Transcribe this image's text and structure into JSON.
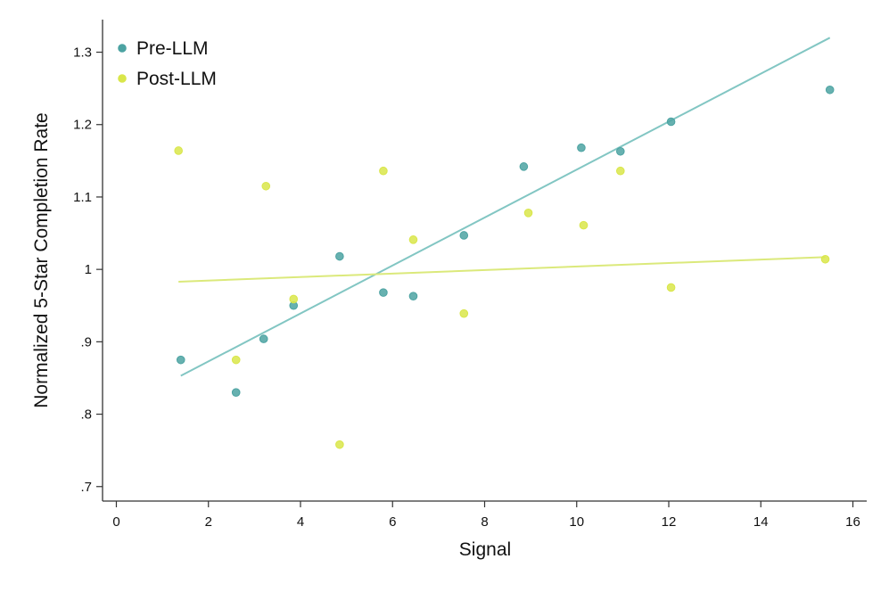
{
  "chart_data": {
    "type": "scatter",
    "xlabel": "Signal",
    "ylabel": "Normalized 5-Star Completion Rate",
    "xlim": [
      -0.3,
      16.3
    ],
    "ylim": [
      0.68,
      1.345
    ],
    "xticks": [
      0,
      2,
      4,
      6,
      8,
      10,
      12,
      14,
      16
    ],
    "xtick_labels": [
      "0",
      "2",
      "4",
      "6",
      "8",
      "10",
      "12",
      "14",
      "16"
    ],
    "yticks": [
      0.7,
      0.8,
      0.9,
      1.0,
      1.1,
      1.2,
      1.3
    ],
    "ytick_labels": [
      ".7",
      ".8",
      ".9",
      "1",
      "1.1",
      "1.2",
      "1.3"
    ],
    "grid": false,
    "legend_position": "top-left",
    "series": [
      {
        "name": "Pre-LLM",
        "color": "#4ca3a2",
        "line_color": "#82c6c3",
        "points": [
          {
            "x": 1.4,
            "y": 0.875
          },
          {
            "x": 2.6,
            "y": 0.83
          },
          {
            "x": 3.2,
            "y": 0.904
          },
          {
            "x": 3.85,
            "y": 0.95
          },
          {
            "x": 4.85,
            "y": 1.018
          },
          {
            "x": 5.8,
            "y": 0.968
          },
          {
            "x": 6.45,
            "y": 0.963
          },
          {
            "x": 7.55,
            "y": 1.047
          },
          {
            "x": 8.85,
            "y": 1.142
          },
          {
            "x": 10.1,
            "y": 1.168
          },
          {
            "x": 10.95,
            "y": 1.163
          },
          {
            "x": 12.05,
            "y": 1.204
          },
          {
            "x": 15.5,
            "y": 1.248
          }
        ],
        "fit": {
          "x": [
            1.4,
            15.5
          ],
          "y": [
            0.853,
            1.32
          ]
        }
      },
      {
        "name": "Post-LLM",
        "color": "#d9e64a",
        "line_color": "#dbe97b",
        "points": [
          {
            "x": 1.35,
            "y": 1.164
          },
          {
            "x": 2.6,
            "y": 0.875
          },
          {
            "x": 3.25,
            "y": 1.115
          },
          {
            "x": 3.85,
            "y": 0.959
          },
          {
            "x": 4.85,
            "y": 0.758
          },
          {
            "x": 5.8,
            "y": 1.136
          },
          {
            "x": 6.45,
            "y": 1.041
          },
          {
            "x": 7.55,
            "y": 0.939
          },
          {
            "x": 8.95,
            "y": 1.078
          },
          {
            "x": 10.15,
            "y": 1.061
          },
          {
            "x": 10.95,
            "y": 1.136
          },
          {
            "x": 12.05,
            "y": 0.975
          },
          {
            "x": 15.4,
            "y": 1.014
          }
        ],
        "fit": {
          "x": [
            1.35,
            15.4
          ],
          "y": [
            0.983,
            1.017
          ]
        }
      }
    ]
  }
}
